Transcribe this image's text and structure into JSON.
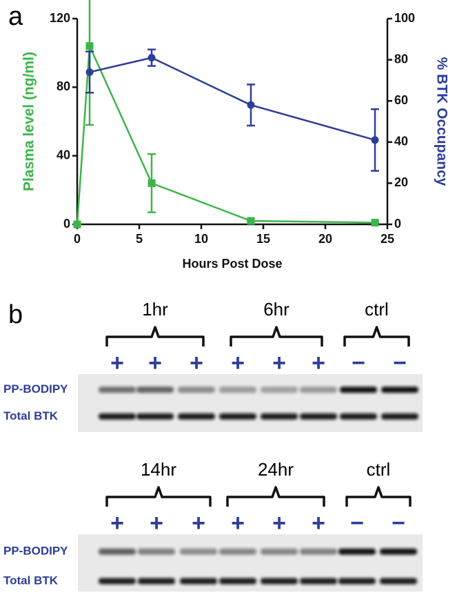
{
  "panel_labels": [
    "a",
    "b"
  ],
  "chart_data": {
    "type": "line",
    "x_label": "Hours Post Dose",
    "y_label": "Plasma level (ng/ml)",
    "y2_label": "% BTK Occupancy",
    "x": [
      0,
      1,
      6,
      14,
      24
    ],
    "xlim": [
      0,
      25
    ],
    "xticks": [
      0,
      5,
      10,
      15,
      20,
      25
    ],
    "ylim": [
      0,
      120
    ],
    "yticks": [
      0,
      40,
      80,
      120
    ],
    "y2lim": [
      0,
      100
    ],
    "y2ticks": [
      0,
      20,
      40,
      60,
      80,
      100
    ],
    "series": [
      {
        "name": "Plasma level",
        "color": "#3cb54a",
        "marker": "square",
        "values": [
          0,
          104,
          24,
          2,
          1
        ],
        "errors": [
          0,
          46,
          17,
          0,
          0
        ]
      },
      {
        "name": "% BTK Occupancy",
        "color": "#2e3d98",
        "marker": "circle",
        "axis": "y2",
        "values": [
          null,
          74,
          81,
          58,
          41
        ],
        "errors": [
          null,
          10,
          4,
          10,
          15
        ]
      }
    ]
  },
  "blots": [
    {
      "groups": [
        {
          "label": "1hr",
          "signs": [
            "+",
            "+",
            "+"
          ]
        },
        {
          "label": "6hr",
          "signs": [
            "+",
            "+",
            "+"
          ]
        },
        {
          "label": "ctrl",
          "signs": [
            "−",
            "−"
          ]
        }
      ],
      "rows": [
        "PP-BODIPY",
        "Total BTK"
      ]
    },
    {
      "groups": [
        {
          "label": "14hr",
          "signs": [
            "+",
            "+",
            "+"
          ]
        },
        {
          "label": "24hr",
          "signs": [
            "+",
            "+",
            "+"
          ]
        },
        {
          "label": "ctrl",
          "signs": [
            "−",
            "−"
          ]
        }
      ],
      "rows": [
        "PP-BODIPY",
        "Total BTK"
      ]
    }
  ]
}
